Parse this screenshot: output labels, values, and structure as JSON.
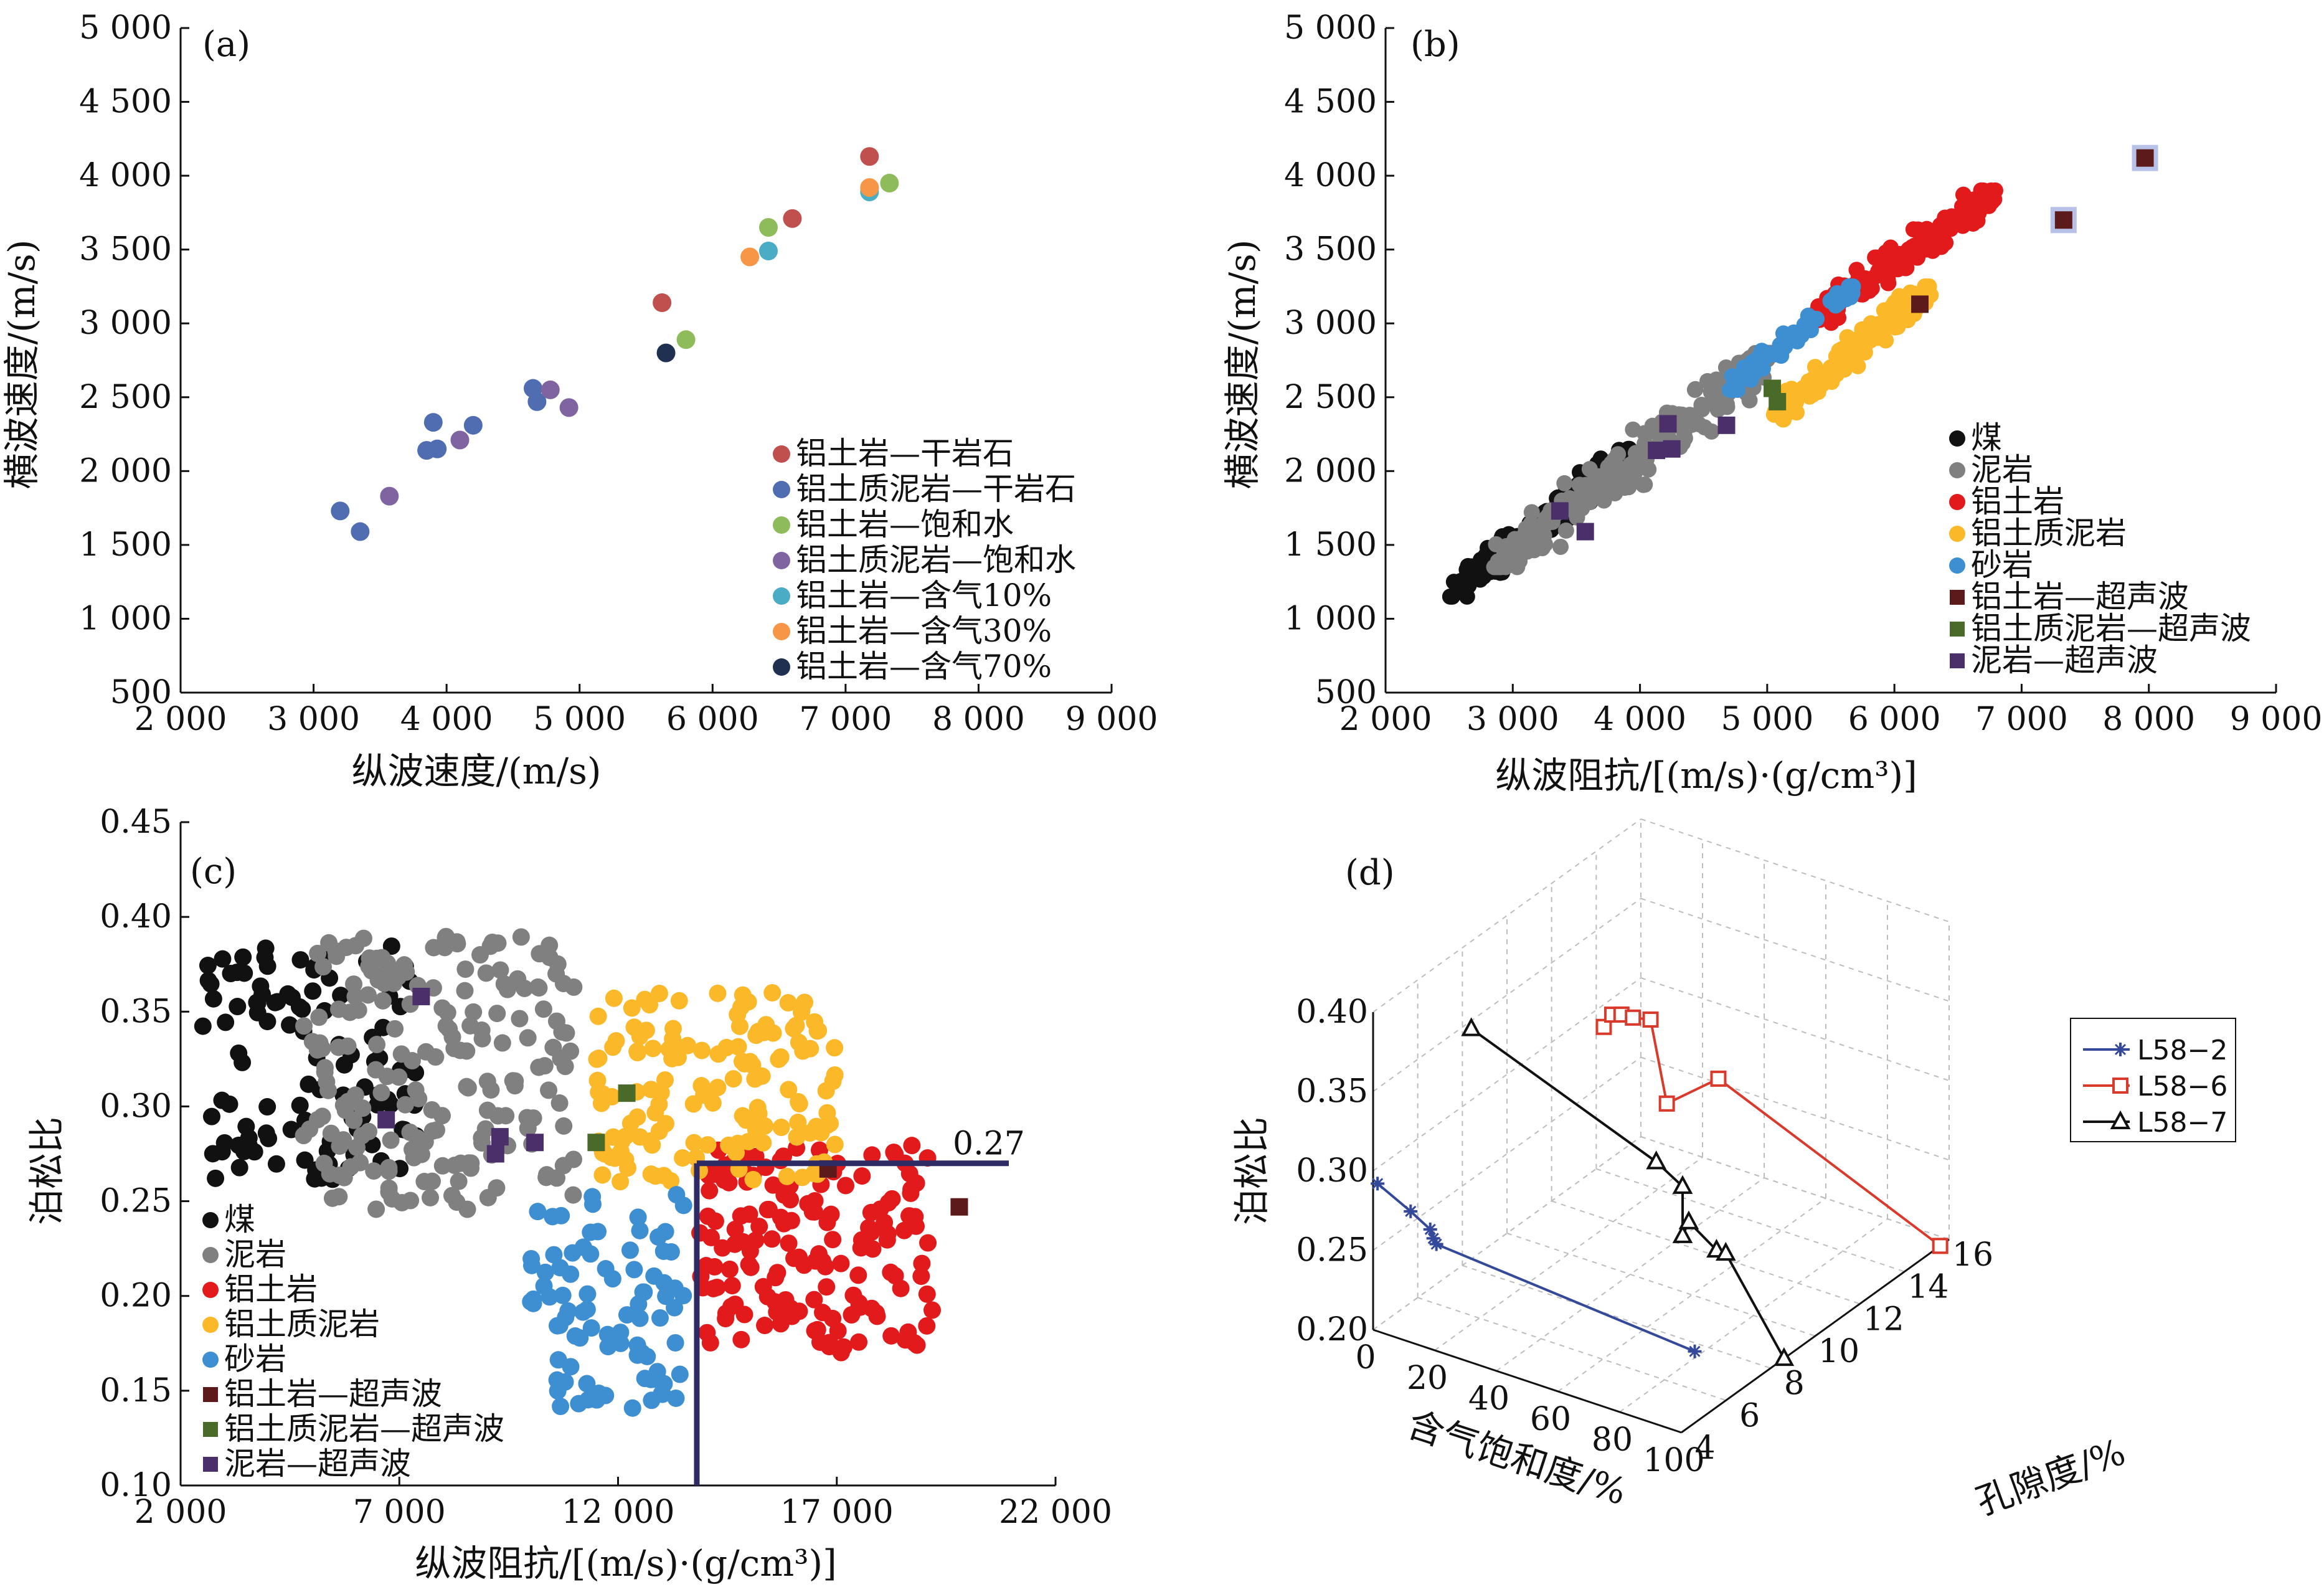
{
  "panels": [
    {
      "id": "a",
      "label": "(a)",
      "xlabel": "纵波速度/(m/s)",
      "ylabel": "横波速度/(m/s)",
      "xlim": [
        2000,
        9000
      ],
      "ylim": [
        500,
        5000
      ],
      "xticks": [
        "2 000",
        "3 000",
        "4 000",
        "5 000",
        "6 000",
        "7 000",
        "8 000",
        "9 000"
      ],
      "yticks": [
        "500",
        "1 000",
        "1 500",
        "2 000",
        "2 500",
        "3 000",
        "3 500",
        "4 000",
        "4 500",
        "5 000"
      ]
    },
    {
      "id": "b",
      "label": "(b)",
      "xlabel": "纵波阻抗/[(m/s)·(g/cm³)]",
      "ylabel": "横波速度/(m/s)",
      "xlim": [
        2000,
        9000
      ],
      "ylim": [
        500,
        5000
      ],
      "xticks": [
        "2 000",
        "3 000",
        "4 000",
        "5 000",
        "6 000",
        "7 000",
        "8 000",
        "9 000"
      ],
      "yticks": [
        "500",
        "1 000",
        "1 500",
        "2 000",
        "2 500",
        "3 000",
        "3 500",
        "4 000",
        "4 500",
        "5 000"
      ]
    },
    {
      "id": "c",
      "label": "(c)",
      "xlabel": "纵波阻抗/[(m/s)·(g/cm³)]",
      "ylabel": "泊松比",
      "xlim": [
        2000,
        22000
      ],
      "ylim": [
        0.1,
        0.45
      ],
      "xticks": [
        "2 000",
        "7 000",
        "12 000",
        "17 000",
        "22 000"
      ],
      "yticks": [
        "0.10",
        "0.15",
        "0.20",
        "0.25",
        "0.30",
        "0.35",
        "0.40",
        "0.45"
      ],
      "threshold_label": "0.27"
    },
    {
      "id": "d",
      "label": "(d)",
      "xlabel": "含气饱和度/%",
      "ylabel": "孔隙度/%",
      "zlabel": "泊松比",
      "xticks": [
        "0",
        "20",
        "40",
        "60",
        "80",
        "100"
      ],
      "yticks": [
        "4",
        "6",
        "8",
        "10",
        "12",
        "14",
        "16"
      ],
      "zticks": [
        "0.20",
        "0.25",
        "0.30",
        "0.35",
        "0.40"
      ]
    }
  ],
  "chart_data": [
    {
      "type": "scatter",
      "panel": "a",
      "xlim": [
        2000,
        9000
      ],
      "ylim": [
        500,
        5000
      ],
      "series": [
        {
          "name": "铝土岩—干岩石",
          "color": "#c0504d",
          "points": [
            [
              7180,
              4130
            ],
            [
              6600,
              3710
            ],
            [
              5620,
              3140
            ]
          ]
        },
        {
          "name": "铝土质泥岩—干岩石",
          "color": "#4f6db0",
          "points": [
            [
              3200,
              1730
            ],
            [
              3350,
              1590
            ],
            [
              3850,
              2140
            ],
            [
              3900,
              2330
            ],
            [
              3930,
              2150
            ],
            [
              4200,
              2310
            ],
            [
              4650,
              2560
            ],
            [
              4680,
              2470
            ]
          ]
        },
        {
          "name": "铝土岩—饱和水",
          "color": "#8fbc5a",
          "points": [
            [
              7330,
              3950
            ],
            [
              6420,
              3650
            ],
            [
              5800,
              2890
            ]
          ]
        },
        {
          "name": "铝土质泥岩—饱和水",
          "color": "#8064a2",
          "points": [
            [
              3570,
              1830
            ],
            [
              4100,
              2210
            ],
            [
              4780,
              2550
            ],
            [
              4920,
              2430
            ]
          ]
        },
        {
          "name": "铝土岩—含气10%",
          "color": "#4bacc6",
          "points": [
            [
              7180,
              3890
            ],
            [
              6420,
              3490
            ]
          ]
        },
        {
          "name": "铝土岩—含气30%",
          "color": "#f79646",
          "points": [
            [
              7180,
              3920
            ],
            [
              6280,
              3450
            ]
          ]
        },
        {
          "name": "铝土岩—含气70%",
          "color": "#1f3050",
          "points": [
            [
              5650,
              2800
            ]
          ]
        }
      ]
    },
    {
      "type": "scatter",
      "panel": "b",
      "xlim": [
        2000,
        9000
      ],
      "ylim": [
        500,
        5000
      ],
      "series": [
        {
          "name": "煤",
          "color": "#111111",
          "cluster": {
            "x": [
              2500,
              3950
            ],
            "y": [
              1150,
              2150
            ]
          }
        },
        {
          "name": "泥岩",
          "color": "#808080",
          "cluster": {
            "x": [
              2850,
              5050
            ],
            "y": [
              1350,
              2800
            ]
          }
        },
        {
          "name": "铝土岩",
          "color": "#e31a1c",
          "cluster": {
            "x": [
              5300,
              6800
            ],
            "y": [
              3000,
              3900
            ]
          }
        },
        {
          "name": "铝土质泥岩",
          "color": "#fbb829",
          "cluster": {
            "x": [
              5050,
              6300
            ],
            "y": [
              2350,
              3250
            ]
          }
        },
        {
          "name": "砂岩",
          "color": "#3d8fd1",
          "cluster": {
            "x": [
              4700,
              5700
            ],
            "y": [
              2550,
              3250
            ]
          }
        },
        {
          "name": "铝土岩—超声波",
          "color": "#5c1a1a",
          "points": [
            [
              7970,
              4120
            ],
            [
              7330,
              3700
            ],
            [
              6200,
              3130
            ]
          ]
        },
        {
          "name": "铝土质泥岩—超声波",
          "color": "#4a6a2a",
          "points": [
            [
              5040,
              2560
            ],
            [
              5080,
              2470
            ]
          ]
        },
        {
          "name": "泥岩—超声波",
          "color": "#4b2f6b",
          "points": [
            [
              3370,
              1730
            ],
            [
              3570,
              1590
            ],
            [
              4130,
              2140
            ],
            [
              4220,
              2320
            ],
            [
              4250,
              2150
            ],
            [
              4680,
              2310
            ]
          ]
        }
      ]
    },
    {
      "type": "scatter",
      "panel": "c",
      "xlim": [
        2000,
        22000
      ],
      "ylim": [
        0.1,
        0.45
      ],
      "threshold": {
        "x": 13800,
        "y": 0.27,
        "label": "0.27"
      },
      "series": [
        {
          "name": "煤",
          "color": "#111111",
          "cluster": {
            "x": [
              2500,
              7500
            ],
            "y": [
              0.26,
              0.385
            ]
          }
        },
        {
          "name": "泥岩",
          "color": "#808080",
          "cluster": {
            "x": [
              4800,
              11000
            ],
            "y": [
              0.245,
              0.39
            ]
          }
        },
        {
          "name": "铝土岩",
          "color": "#e31a1c",
          "cluster": {
            "x": [
              13800,
              19200
            ],
            "y": [
              0.17,
              0.28
            ]
          }
        },
        {
          "name": "铝土质泥岩",
          "color": "#fbb829",
          "cluster": {
            "x": [
              11500,
              17000
            ],
            "y": [
              0.26,
              0.36
            ]
          }
        },
        {
          "name": "砂岩",
          "color": "#3d8fd1",
          "cluster": {
            "x": [
              10000,
              13500
            ],
            "y": [
              0.14,
              0.255
            ]
          }
        },
        {
          "name": "铝土岩—超声波",
          "color": "#5c1a1a",
          "points": [
            [
              19800,
              0.247
            ],
            [
              16800,
              0.267
            ]
          ]
        },
        {
          "name": "铝土质泥岩—超声波",
          "color": "#4a6a2a",
          "points": [
            [
              12200,
              0.307
            ],
            [
              11500,
              0.281
            ]
          ]
        },
        {
          "name": "泥岩—超声波",
          "color": "#4b2f6b",
          "points": [
            [
              7500,
              0.358
            ],
            [
              6700,
              0.293
            ],
            [
              9300,
              0.284
            ],
            [
              9200,
              0.275
            ],
            [
              10100,
              0.281
            ]
          ]
        }
      ]
    },
    {
      "type": "line3d",
      "panel": "d",
      "xlim": [
        0,
        100
      ],
      "ylim": [
        4,
        16
      ],
      "zlim": [
        0.2,
        0.4
      ],
      "series": [
        {
          "name": "L58−2",
          "color": "#34499a",
          "marker": "star",
          "points": [
            [
              0,
              4.2,
              0.29
            ],
            [
              10,
              4.3,
              0.278
            ],
            [
              16,
              4.35,
              0.27
            ],
            [
              17,
              4.35,
              0.265
            ],
            [
              18,
              4.35,
              0.262
            ],
            [
              100,
              4.6,
              0.245
            ]
          ]
        },
        {
          "name": "L58−6",
          "color": "#d93a2b",
          "marker": "square",
          "points": [
            [
              1,
              14.2,
              0.288
            ],
            [
              3,
              14.3,
              0.296
            ],
            [
              6,
              14.3,
              0.298
            ],
            [
              9,
              14.4,
              0.297
            ],
            [
              14,
              14.5,
              0.298
            ],
            [
              20,
              14.4,
              0.25
            ],
            [
              36,
              14.5,
              0.275
            ],
            [
              100,
              15.6,
              0.2
            ]
          ]
        },
        {
          "name": "L58−7",
          "color": "#111111",
          "marker": "triangle",
          "points": [
            [
              0,
              8.4,
              0.345
            ],
            [
              60,
              8.4,
              0.3
            ],
            [
              70,
              8.2,
              0.293
            ],
            [
              70,
              8.2,
              0.262
            ],
            [
              72,
              8.2,
              0.272
            ],
            [
              81,
              8.2,
              0.26
            ],
            [
              84,
              8.2,
              0.26
            ],
            [
              100,
              8.6,
              0.2
            ]
          ]
        }
      ]
    }
  ]
}
